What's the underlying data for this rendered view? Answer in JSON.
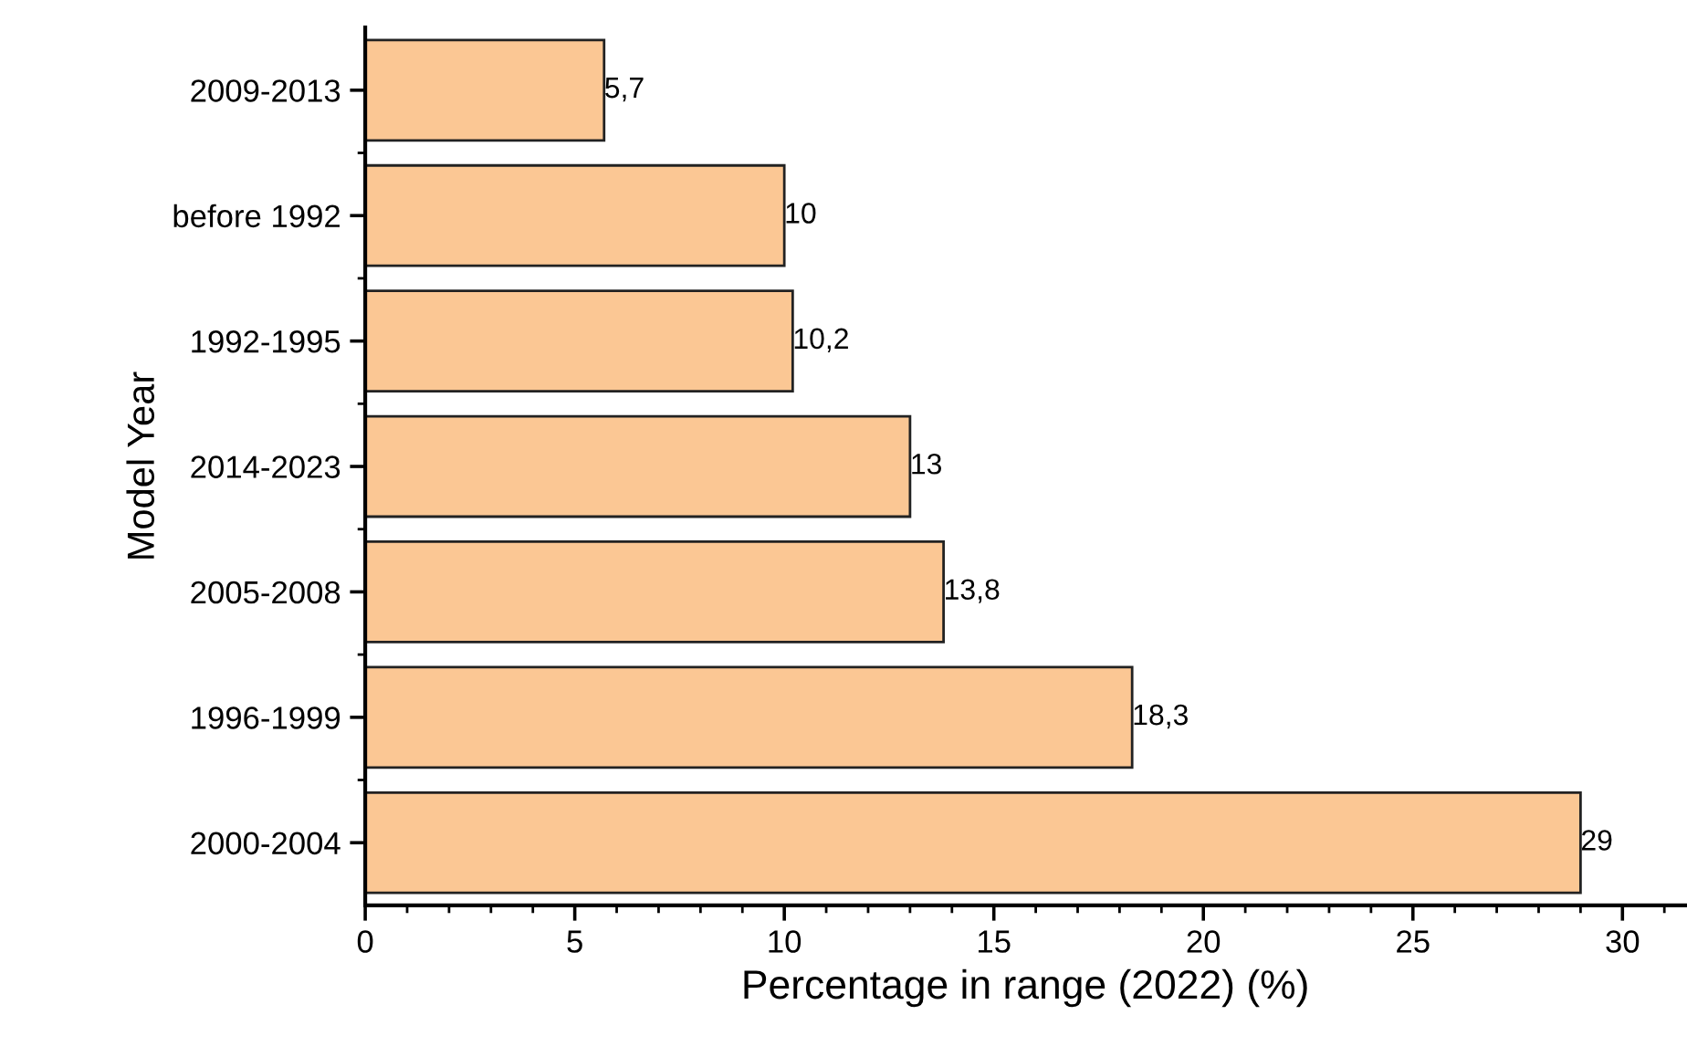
{
  "chart_data": {
    "type": "bar",
    "orientation": "horizontal",
    "xlabel": "Percentage in range (2022) (%)",
    "ylabel": "Model Year",
    "categories": [
      "2009-2013",
      "before 1992",
      "1992-1995",
      "2014-2023",
      "2005-2008",
      "1996-1999",
      "2000-2004"
    ],
    "values": [
      5.7,
      10,
      10.2,
      13,
      13.8,
      18.3,
      29
    ],
    "value_labels": [
      "5,7",
      "10",
      "10,2",
      "13",
      "13,8",
      "18,3",
      "29"
    ],
    "color": "#fbc794",
    "xlim": [
      0,
      31.5
    ],
    "xticks": [
      0,
      5,
      10,
      15,
      20,
      25,
      30
    ],
    "grid": false,
    "legend": false
  }
}
